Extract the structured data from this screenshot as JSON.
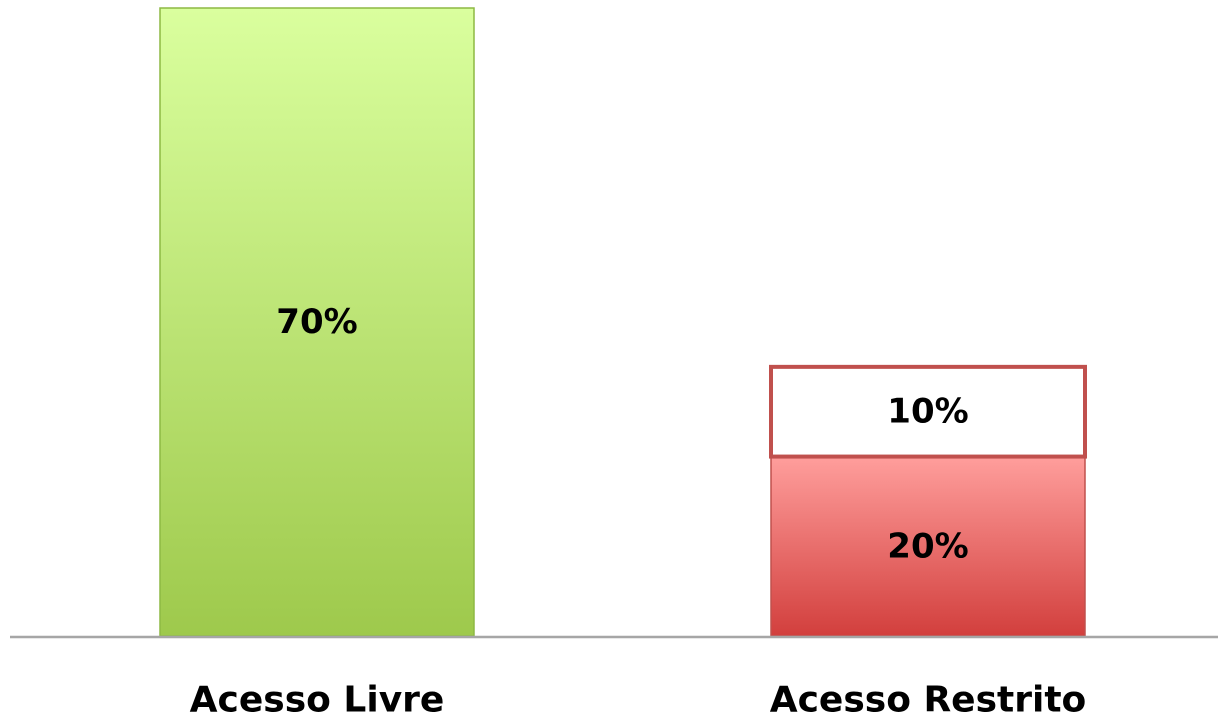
{
  "chart_data": {
    "type": "bar",
    "stacked": true,
    "categories": [
      "Acesso Livre",
      "Acesso Restrito"
    ],
    "series": [
      {
        "values": [
          70,
          20
        ],
        "labels": [
          "70%",
          "20%"
        ]
      },
      {
        "values": [
          0,
          10
        ],
        "labels": [
          "",
          "10%"
        ]
      }
    ],
    "unit": "%",
    "ylim": [
      0,
      70
    ],
    "grid": false,
    "legend": "none",
    "colors": {
      "acesso_livre_top": "#DAFF9E",
      "acesso_livre_bottom": "#9EC94C",
      "acesso_livre_border": "#8DB943",
      "acesso_restrito_top": "#FF9E9C",
      "acesso_restrito_bottom": "#D23F3D",
      "acesso_restrito_border": "#C0504D",
      "empty_segment_fill": "#FFFFFF",
      "axis": "#A6A6A6"
    }
  }
}
